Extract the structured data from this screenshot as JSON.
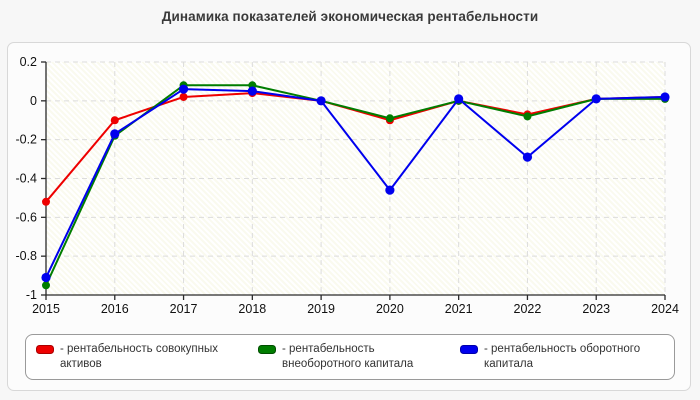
{
  "page": {
    "title": "Динамика показателей экономическая рентабельности"
  },
  "chart_data": {
    "type": "line",
    "title": "Динамика показателей экономическая рентабельности",
    "x": [
      "2015",
      "2016",
      "2017",
      "2018",
      "2019",
      "2020",
      "2021",
      "2022",
      "2023",
      "2024"
    ],
    "series": [
      {
        "key": "total-assets-return",
        "name": "- рентабельность совокупных активов",
        "color": "#ee0000",
        "swatch_border": "#aa0000",
        "marker_r": 4,
        "values": [
          -0.52,
          -0.1,
          0.02,
          0.04,
          0.0,
          -0.1,
          0.0,
          -0.07,
          0.01,
          0.02
        ]
      },
      {
        "key": "noncurrent-capital-return",
        "name": "- рентабельность внеоборотного капитала",
        "color": "#007d00",
        "swatch_border": "#004d00",
        "marker_r": 4,
        "values": [
          -0.95,
          -0.18,
          0.08,
          0.08,
          0.0,
          -0.09,
          0.0,
          -0.08,
          0.01,
          0.01
        ]
      },
      {
        "key": "current-capital-return",
        "name": "- рентабельность оборотного капитала",
        "color": "#0000ee",
        "swatch_border": "#0000aa",
        "marker_r": 4.6,
        "values": [
          -0.91,
          -0.17,
          0.06,
          0.05,
          0.0,
          -0.46,
          0.01,
          -0.29,
          0.01,
          0.02
        ]
      }
    ],
    "ylim": [
      -1,
      0.2
    ],
    "yticks": [
      0.2,
      0,
      -0.2,
      -0.4,
      -0.6,
      -0.8,
      -1
    ],
    "ytick_labels": [
      "0.2",
      "0",
      "-0.2",
      "-0.4",
      "-0.6",
      "-0.8",
      "-1"
    ],
    "xlabel": "",
    "ylabel": "",
    "grid": true,
    "legend_position": "bottom"
  },
  "legend": {
    "items": [
      {
        "label": "- рентабельность совокупных активов",
        "color": "#ee0000",
        "border": "#aa0000"
      },
      {
        "label": "- рентабельность внеоборотного капитала",
        "color": "#007d00",
        "border": "#004d00"
      },
      {
        "label": "- рентабельность оборотного капитала",
        "color": "#0000ee",
        "border": "#0000aa"
      }
    ]
  },
  "colors": {
    "page_bg": "#f7f7f7",
    "card_bg": "#fcfcfc",
    "card_border": "#d8d8d8",
    "grid": "#dcdcdc",
    "axis": "#2a2a2a",
    "tick_text": "#111111"
  }
}
